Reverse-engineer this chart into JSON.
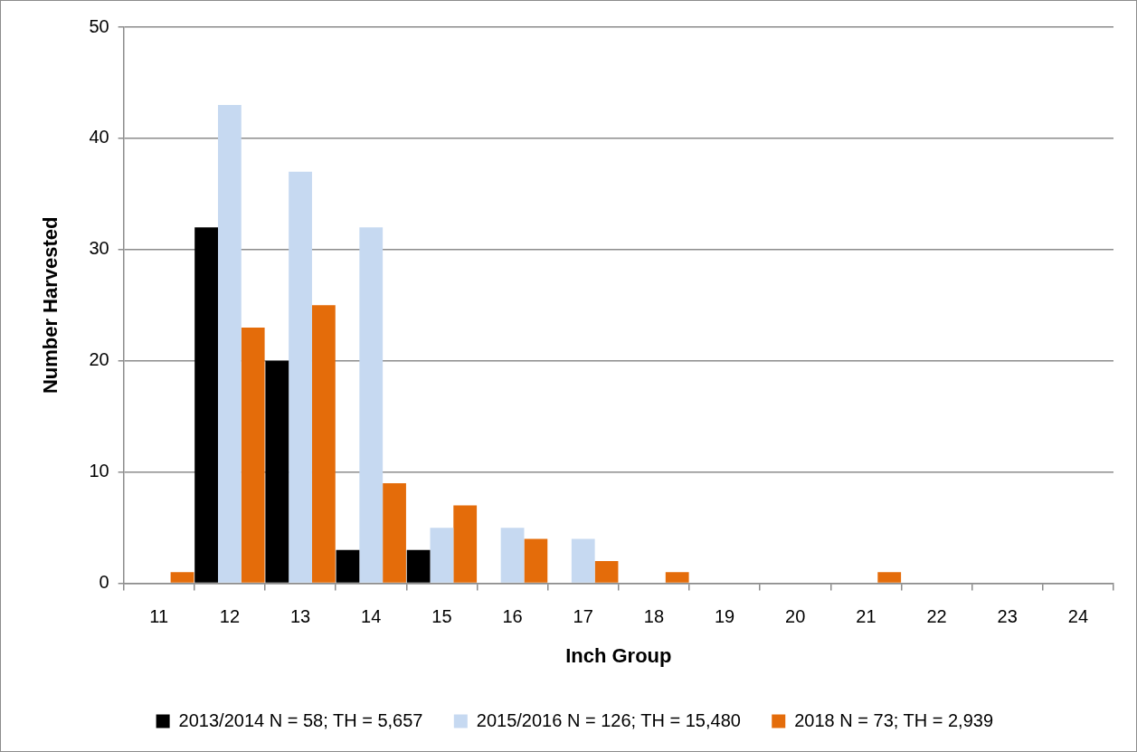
{
  "chart_data": {
    "type": "bar",
    "categories": [
      "11",
      "12",
      "13",
      "14",
      "15",
      "16",
      "17",
      "18",
      "19",
      "20",
      "21",
      "22",
      "23",
      "24"
    ],
    "series": [
      {
        "name": "2013/2014 N = 58; TH = 5,657",
        "color": "#000000",
        "values": [
          0,
          32,
          20,
          3,
          3,
          0,
          0,
          0,
          0,
          0,
          0,
          0,
          0,
          0
        ]
      },
      {
        "name": "2015/2016 N = 126; TH = 15,480",
        "color": "#c6d9f1",
        "values": [
          0,
          43,
          37,
          32,
          5,
          5,
          4,
          0,
          0,
          0,
          0,
          0,
          0,
          0
        ]
      },
      {
        "name": "2018 N = 73; TH = 2,939",
        "color": "#e46c0a",
        "values": [
          1,
          23,
          25,
          9,
          7,
          4,
          2,
          1,
          0,
          0,
          1,
          0,
          0,
          0
        ]
      }
    ],
    "xlabel": "Inch Group",
    "ylabel": "Number Harvested",
    "ylim": [
      0,
      50
    ],
    "yticks": [
      0,
      10,
      20,
      30,
      40,
      50
    ],
    "grid": "y",
    "legend": "bottom"
  }
}
